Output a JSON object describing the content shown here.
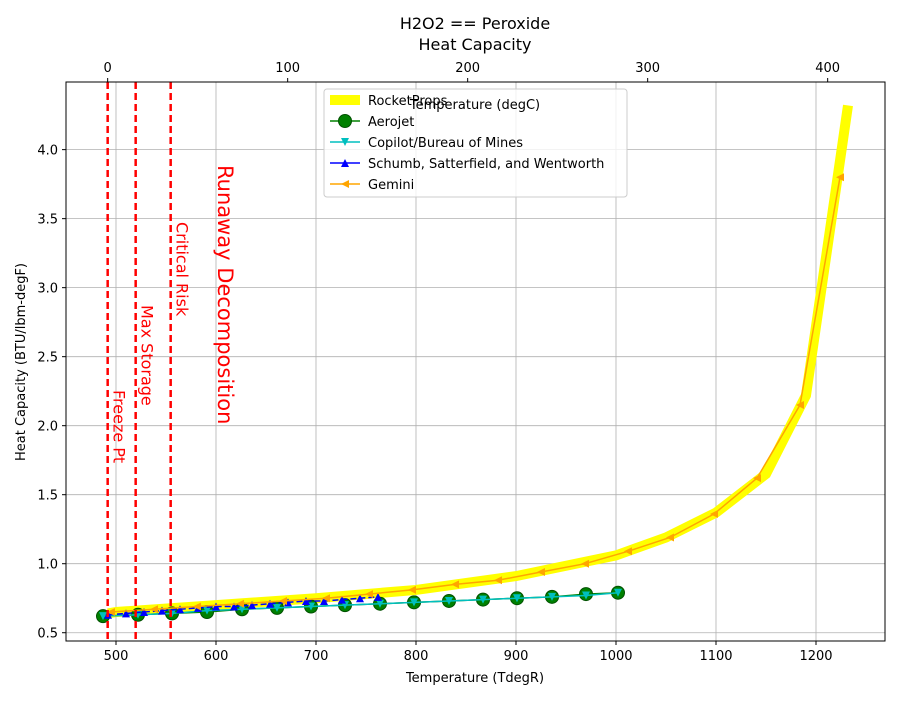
{
  "chart_data": {
    "type": "line",
    "title": "H2O2 == Peroxide",
    "subtitle": "Heat Capacity",
    "xlabel": "Temperature (TdegR)",
    "ylabel": "Heat Capacity (BTU/lbm-degF)",
    "x2label": "Temperature (degC)",
    "xlim": [
      450,
      1269
    ],
    "ylim": [
      0.44,
      4.49
    ],
    "x2lim": [
      -23.15,
      431.85
    ],
    "xticks": [
      500,
      600,
      700,
      800,
      900,
      1000,
      1100,
      1200
    ],
    "x2ticks": [
      0,
      100,
      200,
      300,
      400
    ],
    "yticks": [
      0.5,
      {
        "value": 1.0,
        "label": "1.0"
      },
      1.5,
      {
        "value": 2.0,
        "label": "2.0"
      },
      2.5,
      {
        "value": 3.0,
        "label": "3.0"
      },
      3.5,
      {
        "value": 4.0,
        "label": "4.0"
      }
    ],
    "grid": true,
    "legend": "upper center",
    "vlines": [
      {
        "value": 491.67,
        "label": "Freeze Pt",
        "color": "#ff0000"
      },
      {
        "value": 519.67,
        "label": "Max Storage",
        "color": "#ff0000"
      },
      {
        "value": 554.67,
        "label": "Critical Risk",
        "color": "#ff0000"
      }
    ],
    "annotation": "Runaway Decomposition",
    "series": [
      {
        "name": "RocketProps",
        "color": "#ffff00",
        "marker": "none",
        "x": [
          492,
          500,
          600,
          700,
          800,
          900,
          1000,
          1050,
          1100,
          1150,
          1190,
          1232
        ],
        "values": [
          0.64,
          0.65,
          0.7,
          0.75,
          0.81,
          0.91,
          1.06,
          1.19,
          1.37,
          1.65,
          2.22,
          4.32
        ]
      },
      {
        "name": "Aerojet",
        "color": "#008000",
        "marker": "o",
        "x": [
          487,
          522,
          556,
          591,
          626,
          661,
          695,
          729,
          764,
          798,
          833,
          867,
          901,
          936,
          970,
          1002
        ],
        "values": [
          0.62,
          0.63,
          0.64,
          0.65,
          0.67,
          0.68,
          0.69,
          0.7,
          0.71,
          0.72,
          0.73,
          0.74,
          0.75,
          0.76,
          0.78,
          0.79
        ]
      },
      {
        "name": "Copilot/Bureau of Mines",
        "color": "#00bfbf",
        "marker": "v",
        "x": [
          487,
          522,
          556,
          591,
          626,
          661,
          695,
          729,
          764,
          798,
          833,
          867,
          901,
          936,
          970,
          1002
        ],
        "values": [
          0.62,
          0.63,
          0.64,
          0.66,
          0.67,
          0.68,
          0.69,
          0.7,
          0.71,
          0.72,
          0.73,
          0.74,
          0.75,
          0.76,
          0.77,
          0.79
        ]
      },
      {
        "name": "Schumb, Satterfield, and Wentworth",
        "color": "#0000ff",
        "marker": "^",
        "x": [
          492,
          510,
          528,
          546,
          564,
          582,
          600,
          618,
          636,
          654,
          672,
          690,
          708,
          726,
          744,
          762
        ],
        "values": [
          0.63,
          0.64,
          0.65,
          0.66,
          0.67,
          0.68,
          0.69,
          0.69,
          0.7,
          0.71,
          0.72,
          0.73,
          0.73,
          0.74,
          0.75,
          0.76
        ]
      },
      {
        "name": "Gemini",
        "color": "#ffa500",
        "marker": "<",
        "x": [
          495,
          538,
          581,
          624,
          667,
          710,
          753,
          796,
          839,
          882,
          925,
          969,
          1012,
          1054,
          1098,
          1141,
          1184,
          1224
        ],
        "values": [
          0.65,
          0.67,
          0.69,
          0.71,
          0.73,
          0.75,
          0.78,
          0.81,
          0.85,
          0.88,
          0.94,
          1.0,
          1.09,
          1.19,
          1.36,
          1.62,
          2.15,
          3.8
        ]
      }
    ]
  }
}
